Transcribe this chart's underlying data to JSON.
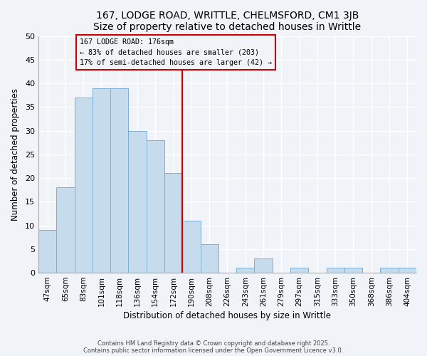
{
  "title": "167, LODGE ROAD, WRITTLE, CHELMSFORD, CM1 3JB",
  "subtitle": "Size of property relative to detached houses in Writtle",
  "xlabel": "Distribution of detached houses by size in Writtle",
  "ylabel": "Number of detached properties",
  "bar_labels": [
    "47sqm",
    "65sqm",
    "83sqm",
    "101sqm",
    "118sqm",
    "136sqm",
    "154sqm",
    "172sqm",
    "190sqm",
    "208sqm",
    "226sqm",
    "243sqm",
    "261sqm",
    "279sqm",
    "297sqm",
    "315sqm",
    "333sqm",
    "350sqm",
    "368sqm",
    "386sqm",
    "404sqm"
  ],
  "bar_values": [
    9,
    18,
    37,
    39,
    39,
    30,
    28,
    21,
    11,
    6,
    0,
    1,
    3,
    0,
    1,
    0,
    1,
    1,
    0,
    1,
    1
  ],
  "bar_color": "#c6dcec",
  "bar_edge_color": "#7bafd4",
  "vline_bar_index": 7,
  "vline_color": "#cc0000",
  "annotation_title": "167 LODGE ROAD: 176sqm",
  "annotation_line1": "← 83% of detached houses are smaller (203)",
  "annotation_line2": "17% of semi-detached houses are larger (42) →",
  "annotation_box_edge_color": "#cc0000",
  "ylim": [
    0,
    50
  ],
  "yticks": [
    0,
    5,
    10,
    15,
    20,
    25,
    30,
    35,
    40,
    45,
    50
  ],
  "background_color": "#f0f4f8",
  "grid_color": "#ffffff",
  "footer1": "Contains HM Land Registry data © Crown copyright and database right 2025.",
  "footer2": "Contains public sector information licensed under the Open Government Licence v3.0."
}
